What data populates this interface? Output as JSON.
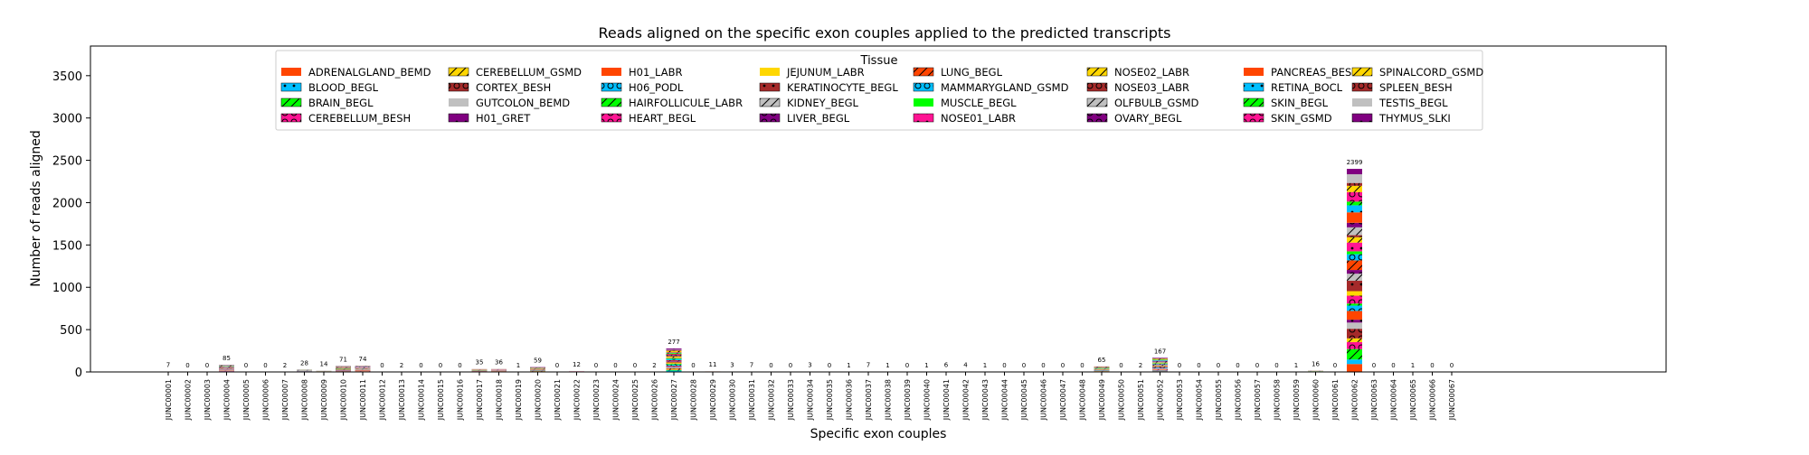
{
  "chart_data": {
    "type": "bar",
    "stacked": true,
    "title": "Reads aligned on the specific exon couples applied to the predicted transcripts",
    "xlabel": "Specific exon couples",
    "ylabel": "Number of reads aligned",
    "ylim": [
      0,
      3850
    ],
    "yticks": [
      0,
      500,
      1000,
      1500,
      2000,
      2500,
      3000,
      3500
    ],
    "grid": false,
    "legend": {
      "title": "Tissue",
      "placement": "top-center",
      "entries": [
        {
          "name": "ADRENALGLAND_BEMD",
          "color": "#ff4500",
          "hatch": "none"
        },
        {
          "name": "BLOOD_BEGL",
          "color": "#00bfff",
          "hatch": "dot"
        },
        {
          "name": "BRAIN_BEGL",
          "color": "#00ff00",
          "hatch": "slash"
        },
        {
          "name": "CEREBELLUM_BESH",
          "color": "#ff1493",
          "hatch": "ring"
        },
        {
          "name": "CEREBELLUM_GSMD",
          "color": "#ffd700",
          "hatch": "slash"
        },
        {
          "name": "CORTEX_BESH",
          "color": "#a52a2a",
          "hatch": "ring"
        },
        {
          "name": "GUTCOLON_BEMD",
          "color": "#c0c0c0",
          "hatch": "none"
        },
        {
          "name": "H01_GRET",
          "color": "#800080",
          "hatch": "dot"
        },
        {
          "name": "H01_LABR",
          "color": "#ff4500",
          "hatch": "none"
        },
        {
          "name": "H06_PODL",
          "color": "#00bfff",
          "hatch": "ring"
        },
        {
          "name": "HAIRFOLLICULE_LABR",
          "color": "#00ff00",
          "hatch": "slash"
        },
        {
          "name": "HEART_BEGL",
          "color": "#ff1493",
          "hatch": "ring"
        },
        {
          "name": "JEJUNUM_LABR",
          "color": "#ffd700",
          "hatch": "none"
        },
        {
          "name": "KERATINOCYTE_BEGL",
          "color": "#a52a2a",
          "hatch": "dot"
        },
        {
          "name": "KIDNEY_BEGL",
          "color": "#c0c0c0",
          "hatch": "slash"
        },
        {
          "name": "LIVER_BEGL",
          "color": "#800080",
          "hatch": "ring"
        },
        {
          "name": "LUNG_BEGL",
          "color": "#ff4500",
          "hatch": "slash"
        },
        {
          "name": "MAMMARYGLAND_GSMD",
          "color": "#00bfff",
          "hatch": "ring"
        },
        {
          "name": "MUSCLE_BEGL",
          "color": "#00ff00",
          "hatch": "none"
        },
        {
          "name": "NOSE01_LABR",
          "color": "#ff1493",
          "hatch": "dot"
        },
        {
          "name": "NOSE02_LABR",
          "color": "#ffd700",
          "hatch": "slash"
        },
        {
          "name": "NOSE03_LABR",
          "color": "#a52a2a",
          "hatch": "ring"
        },
        {
          "name": "OLFBULB_GSMD",
          "color": "#c0c0c0",
          "hatch": "slash"
        },
        {
          "name": "OVARY_BEGL",
          "color": "#800080",
          "hatch": "ring"
        },
        {
          "name": "PANCREAS_BESH",
          "color": "#ff4500",
          "hatch": "none"
        },
        {
          "name": "RETINA_BOCL",
          "color": "#00bfff",
          "hatch": "dot"
        },
        {
          "name": "SKIN_BEGL",
          "color": "#00ff00",
          "hatch": "slash"
        },
        {
          "name": "SKIN_GSMD",
          "color": "#ff1493",
          "hatch": "ring"
        },
        {
          "name": "SPINALCORD_GSMD",
          "color": "#ffd700",
          "hatch": "slash"
        },
        {
          "name": "SPLEEN_BESH",
          "color": "#a52a2a",
          "hatch": "ring"
        },
        {
          "name": "TESTIS_BEGL",
          "color": "#c0c0c0",
          "hatch": "none"
        },
        {
          "name": "THYMUS_SLKI",
          "color": "#800080",
          "hatch": "dot"
        }
      ]
    },
    "categories": [
      "JUNC00001",
      "JUNC00002",
      "JUNC00003",
      "JUNC00004",
      "JUNC00005",
      "JUNC00006",
      "JUNC00007",
      "JUNC00008",
      "JUNC00009",
      "JUNC00010",
      "JUNC00011",
      "JUNC00012",
      "JUNC00013",
      "JUNC00014",
      "JUNC00015",
      "JUNC00016",
      "JUNC00017",
      "JUNC00018",
      "JUNC00019",
      "JUNC00020",
      "JUNC00021",
      "JUNC00022",
      "JUNC00023",
      "JUNC00024",
      "JUNC00025",
      "JUNC00026",
      "JUNC00027",
      "JUNC00028",
      "JUNC00029",
      "JUNC00030",
      "JUNC00031",
      "JUNC00032",
      "JUNC00033",
      "JUNC00034",
      "JUNC00035",
      "JUNC00036",
      "JUNC00037",
      "JUNC00038",
      "JUNC00039",
      "JUNC00040",
      "JUNC00041",
      "JUNC00042",
      "JUNC00043",
      "JUNC00044",
      "JUNC00045",
      "JUNC00046",
      "JUNC00047",
      "JUNC00048",
      "JUNC00049",
      "JUNC00050",
      "JUNC00051",
      "JUNC00052",
      "JUNC00053",
      "JUNC00054",
      "JUNC00055",
      "JUNC00056",
      "JUNC00057",
      "JUNC00058",
      "JUNC00059",
      "JUNC00060",
      "JUNC00061",
      "JUNC00062",
      "JUNC00063",
      "JUNC00064",
      "JUNC00065",
      "JUNC00066",
      "JUNC00067"
    ],
    "totals": [
      7,
      0,
      0,
      85,
      0,
      0,
      2,
      28,
      14,
      71,
      74,
      0,
      2,
      0,
      0,
      0,
      35,
      36,
      1,
      59,
      0,
      12,
      0,
      0,
      0,
      2,
      277,
      0,
      11,
      3,
      7,
      0,
      0,
      3,
      0,
      1,
      7,
      1,
      0,
      1,
      6,
      4,
      1,
      0,
      0,
      0,
      0,
      0,
      65,
      0,
      2,
      167,
      0,
      0,
      0,
      0,
      0,
      0,
      1,
      16,
      0,
      2399,
      0,
      0,
      1,
      0,
      0
    ],
    "data_labels": [
      "7",
      "0",
      "0",
      "85",
      "0",
      "0",
      "2",
      "28",
      "14",
      "71",
      "74",
      "0",
      "2",
      "0",
      "0",
      "0",
      "35",
      "36",
      "1",
      "59",
      "0",
      "12",
      "0",
      "0",
      "0",
      "2",
      "277",
      "0",
      "11",
      "3",
      "7",
      "0",
      "0",
      "3",
      "0",
      "1",
      "7",
      "1",
      "0",
      "1",
      "6",
      "4",
      "1",
      "0",
      "0",
      "0",
      "0",
      "0",
      "65",
      "0",
      "2",
      "167",
      "0",
      "0",
      "0",
      "0",
      "0",
      "0",
      "1",
      "16",
      "0",
      "2399",
      "0",
      "0",
      "1",
      "0",
      "0"
    ]
  }
}
